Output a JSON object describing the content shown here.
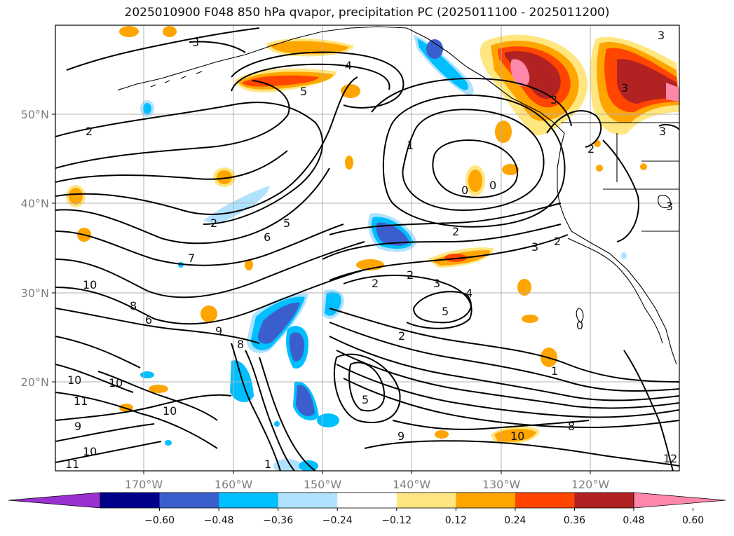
{
  "title": "2025010900 F048 850 hPa qvapor, precipitation PC (2025011100 - 2025011200)",
  "lon_ticks": [
    "170°W",
    "160°W",
    "150°W",
    "140°W",
    "130°W",
    "120°W"
  ],
  "lat_ticks": [
    "50°N",
    "40°N",
    "30°N",
    "20°N"
  ],
  "colorbar": {
    "tick_labels": [
      "−0.60",
      "−0.48",
      "−0.36",
      "−0.24",
      "−0.12",
      "0.12",
      "0.24",
      "0.36",
      "0.48",
      "0.60"
    ],
    "colors": [
      "#9b30d0",
      "#00008b",
      "#3a5fcd",
      "#00bfff",
      "#b0e2ff",
      "#ffffff",
      "#ffe680",
      "#ffa500",
      "#ff4500",
      "#b22222",
      "#ff88aa"
    ]
  },
  "contour_labels": [
    {
      "text": "3"
    },
    {
      "text": "4"
    },
    {
      "text": "5"
    },
    {
      "text": "2"
    },
    {
      "text": "1"
    },
    {
      "text": "0"
    },
    {
      "text": "0"
    },
    {
      "text": "3"
    },
    {
      "text": "3"
    },
    {
      "text": "3"
    },
    {
      "text": "2"
    },
    {
      "text": "5"
    },
    {
      "text": "6"
    },
    {
      "text": "7"
    },
    {
      "text": "2"
    },
    {
      "text": "10"
    },
    {
      "text": "8"
    },
    {
      "text": "6"
    },
    {
      "text": "9"
    },
    {
      "text": "8"
    },
    {
      "text": "2"
    },
    {
      "text": "2"
    },
    {
      "text": "3"
    },
    {
      "text": "5"
    },
    {
      "text": "4"
    },
    {
      "text": "2"
    },
    {
      "text": "3"
    },
    {
      "text": "2"
    },
    {
      "text": "2"
    },
    {
      "text": "0"
    },
    {
      "text": "1"
    },
    {
      "text": "10"
    },
    {
      "text": "10"
    },
    {
      "text": "11"
    },
    {
      "text": "10"
    },
    {
      "text": "9"
    },
    {
      "text": "11"
    },
    {
      "text": "10"
    },
    {
      "text": "8"
    },
    {
      "text": "10"
    },
    {
      "text": "9"
    },
    {
      "text": "5"
    },
    {
      "text": "1"
    },
    {
      "text": "12"
    },
    {
      "text": "3"
    },
    {
      "text": "3"
    }
  ]
}
